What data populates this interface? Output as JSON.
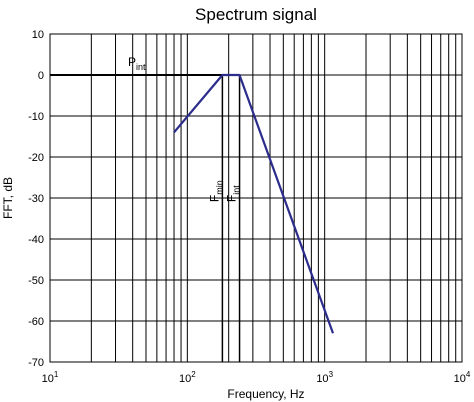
{
  "chart_data": {
    "type": "line",
    "title": "Spectrum signal",
    "xlabel": "Frequency, Hz",
    "ylabel": "FFT, dB",
    "x_scale": "log",
    "xlim": [
      10,
      10000
    ],
    "ylim": [
      -70,
      10
    ],
    "x_ticks": [
      {
        "value": 10,
        "base": "10",
        "exp": "1"
      },
      {
        "value": 100,
        "base": "10",
        "exp": "2"
      },
      {
        "value": 1000,
        "base": "10",
        "exp": "3"
      },
      {
        "value": 10000,
        "base": "10",
        "exp": "4"
      }
    ],
    "y_ticks": [
      10,
      0,
      -10,
      -20,
      -30,
      -40,
      -50,
      -60,
      -70
    ],
    "grid": true,
    "series": [
      {
        "color": "#2c2c8c",
        "x": [
          80,
          180,
          200,
          240,
          1150
        ],
        "y": [
          -14,
          0,
          0,
          0,
          -63
        ]
      }
    ],
    "reference_lines": {
      "p_int": {
        "x_from": 10,
        "x_to": 180,
        "y": 0,
        "label_main": "P",
        "label_sub": "int"
      },
      "f_min": {
        "x": 180,
        "y_from": -70,
        "y_to": 0,
        "label_main": "F",
        "label_sub": "min"
      },
      "f_int": {
        "x": 240,
        "y_from": -70,
        "y_to": 0,
        "label_main": "F",
        "label_sub": "int"
      }
    }
  }
}
